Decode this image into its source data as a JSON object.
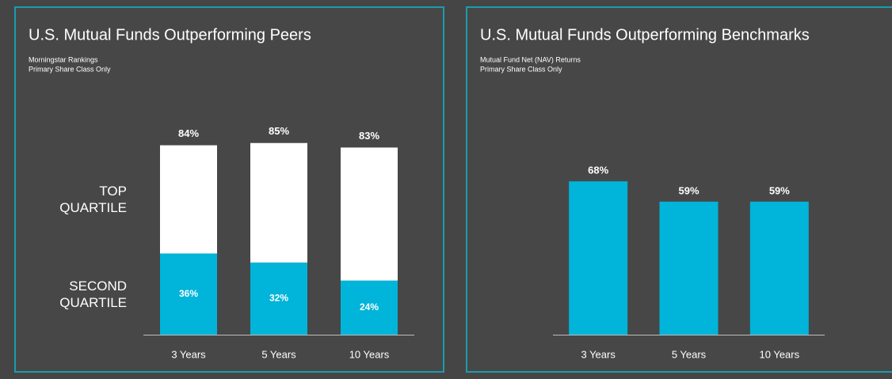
{
  "chart_data": [
    {
      "type": "stacked_bar",
      "title": "U.S. Mutual Funds Outperforming Peers",
      "subtitle": [
        "Morningstar Rankings",
        "Primary Share Class Only"
      ],
      "categories": [
        "3 Years",
        "5 Years",
        "10 Years"
      ],
      "series": [
        {
          "name": "SECOND QUARTILE",
          "color": "#00b4da",
          "label_color": "#ffffff",
          "values": [
            36,
            32,
            24
          ],
          "value_labels": [
            "36%",
            "32%",
            "24%"
          ]
        },
        {
          "name": "TOP QUARTILE",
          "color": "#ffffff",
          "label_color": "#1d5c8c",
          "values": [
            48,
            53,
            59
          ],
          "value_labels": [
            "48%",
            "53%",
            "59%"
          ]
        }
      ],
      "totals": [
        84,
        85,
        83
      ],
      "total_labels": [
        "84%",
        "85%",
        "83%"
      ],
      "ylim": [
        0,
        100
      ]
    },
    {
      "type": "bar",
      "title": "U.S. Mutual Funds Outperforming Benchmarks",
      "subtitle": [
        "Mutual Fund Net (NAV) Returns",
        "Primary Share Class Only"
      ],
      "categories": [
        "3 Years",
        "5 Years",
        "10 Years"
      ],
      "values": [
        68,
        59,
        59
      ],
      "value_labels": [
        "68%",
        "59%",
        "59%"
      ],
      "color": "#00b4da",
      "ylim": [
        0,
        100
      ]
    }
  ]
}
